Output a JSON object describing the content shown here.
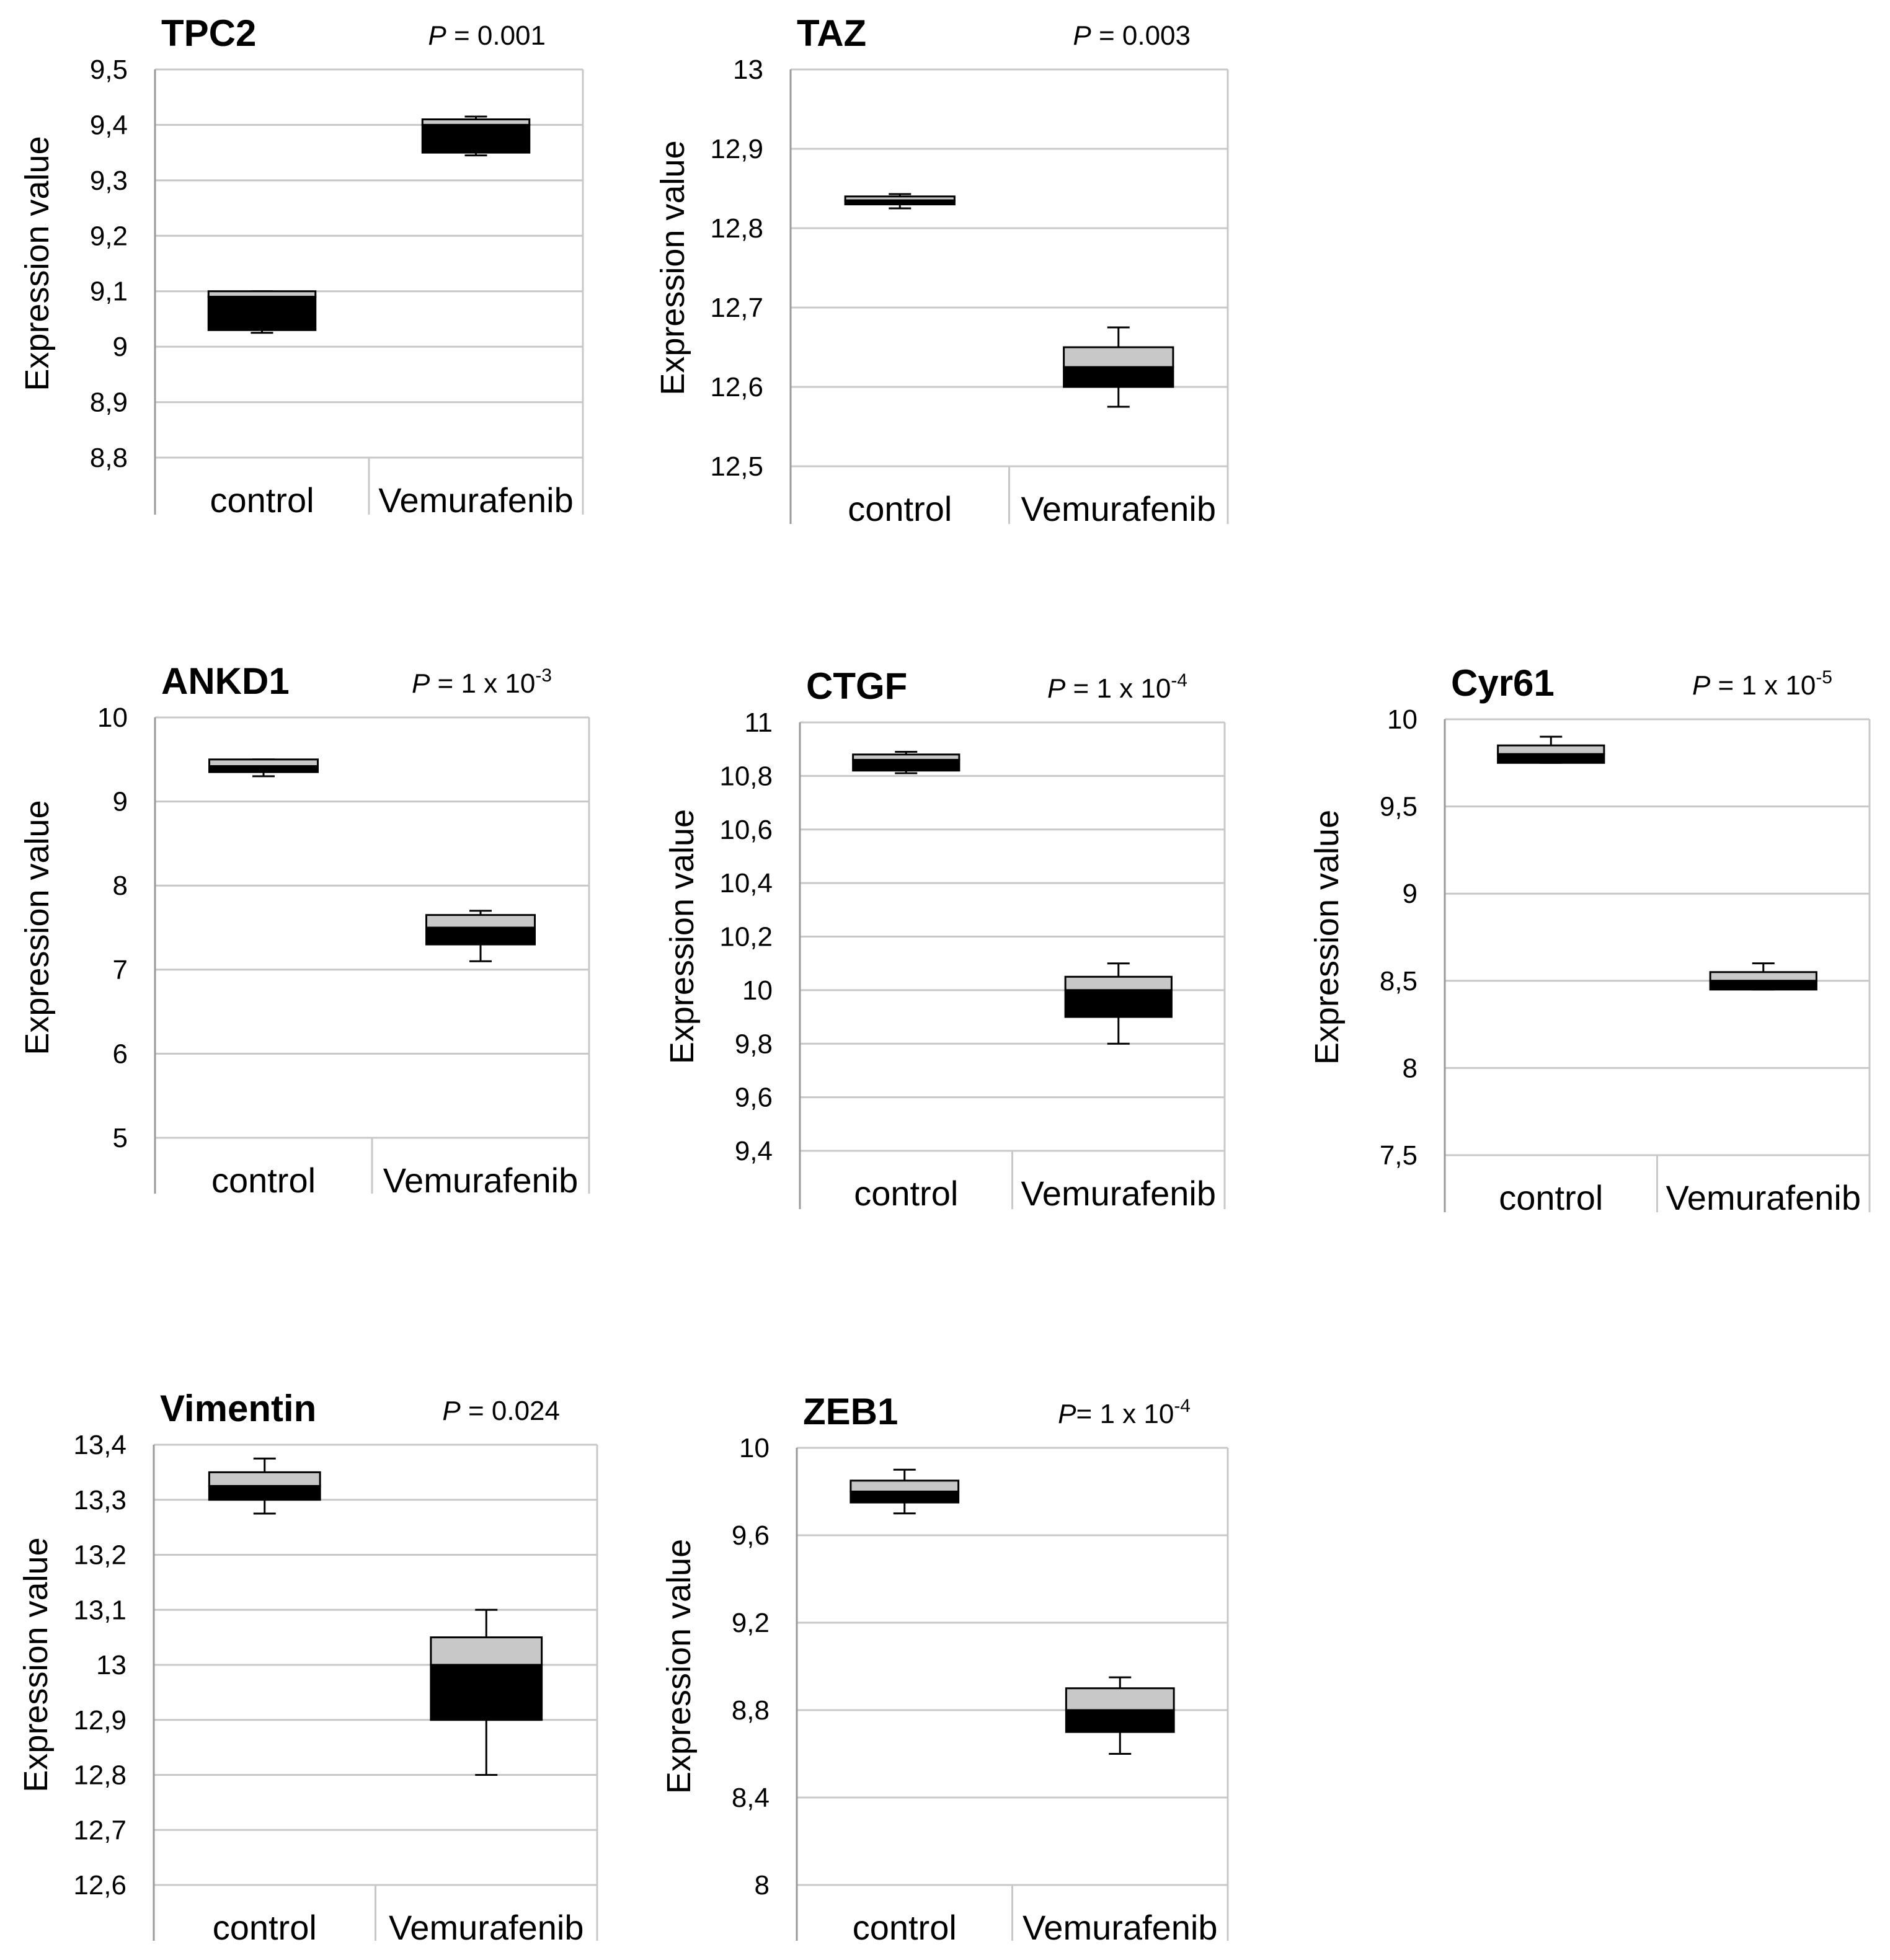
{
  "colors": {
    "grid": "#c8c8c8",
    "axis": "#9a9a9a",
    "box_upper": "#c8c8c8",
    "box_lower": "#000000",
    "whisker": "#000000",
    "text": "#000000"
  },
  "chart_data": [
    {
      "type": "box",
      "title": "TPC2",
      "p_prefix": "P",
      "p_value": " = 0.001",
      "p_exp": "",
      "ylabel": "Expression value",
      "ylim": [
        8.8,
        9.5
      ],
      "ticks": [
        "9,5",
        "9,4",
        "9,3",
        "9,2",
        "9,1",
        "9",
        "8,9",
        "8,8"
      ],
      "categories": [
        "control",
        "Vemurafenib"
      ],
      "boxes": [
        {
          "min": 9.025,
          "q1": 9.03,
          "median": 9.09,
          "q3": 9.1,
          "max": 9.1
        },
        {
          "min": 9.345,
          "q1": 9.35,
          "median": 9.4,
          "q3": 9.41,
          "max": 9.415
        }
      ]
    },
    {
      "type": "box",
      "title": "TAZ",
      "p_prefix": "P",
      "p_value": " = 0.003",
      "p_exp": "",
      "ylabel": "Expression value",
      "ylim": [
        12.5,
        13.0
      ],
      "ticks": [
        "13",
        "12,9",
        "12,8",
        "12,7",
        "12,6",
        "12,5"
      ],
      "categories": [
        "control",
        "Vemurafenib"
      ],
      "boxes": [
        {
          "min": 12.825,
          "q1": 12.83,
          "median": 12.835,
          "q3": 12.84,
          "max": 12.843
        },
        {
          "min": 12.575,
          "q1": 12.6,
          "median": 12.625,
          "q3": 12.65,
          "max": 12.675
        }
      ]
    },
    {
      "type": "box",
      "title": "ANKD1",
      "p_prefix": "P",
      "p_value": " = 1 x 10",
      "p_exp": "-3",
      "ylabel": "Expression value",
      "ylim": [
        5,
        10
      ],
      "ticks": [
        "10",
        "9",
        "8",
        "7",
        "6",
        "5"
      ],
      "categories": [
        "control",
        "Vemurafenib"
      ],
      "boxes": [
        {
          "min": 9.3,
          "q1": 9.35,
          "median": 9.42,
          "q3": 9.5,
          "max": 9.5
        },
        {
          "min": 7.1,
          "q1": 7.3,
          "median": 7.5,
          "q3": 7.65,
          "max": 7.7
        }
      ]
    },
    {
      "type": "box",
      "title": "CTGF",
      "p_prefix": "P",
      "p_value": " = 1 x 10",
      "p_exp": "-4",
      "ylabel": "Expression value",
      "ylim": [
        9.4,
        11.0
      ],
      "ticks": [
        "11",
        "10,8",
        "10,6",
        "10,4",
        "10,2",
        "10",
        "9,8",
        "9,6",
        "9,4"
      ],
      "categories": [
        "control",
        "Vemurafenib"
      ],
      "boxes": [
        {
          "min": 10.81,
          "q1": 10.82,
          "median": 10.86,
          "q3": 10.88,
          "max": 10.89
        },
        {
          "min": 9.8,
          "q1": 9.9,
          "median": 10.0,
          "q3": 10.05,
          "max": 10.1
        }
      ]
    },
    {
      "type": "box",
      "title": "Cyr61",
      "p_prefix": "P",
      "p_value": " = 1 x 10",
      "p_exp": "-5",
      "ylabel": "Expression value",
      "ylim": [
        7.5,
        10.0
      ],
      "ticks": [
        "10",
        "9,5",
        "9",
        "8,5",
        "8",
        "7,5"
      ],
      "categories": [
        "control",
        "Vemurafenib"
      ],
      "boxes": [
        {
          "min": 9.75,
          "q1": 9.75,
          "median": 9.8,
          "q3": 9.85,
          "max": 9.9
        },
        {
          "min": 8.45,
          "q1": 8.45,
          "median": 8.5,
          "q3": 8.55,
          "max": 8.6
        }
      ]
    },
    {
      "type": "box",
      "title": "Vimentin",
      "p_prefix": "P",
      "p_value": " = 0.024",
      "p_exp": "",
      "ylabel": "Expression value",
      "ylim": [
        12.6,
        13.4
      ],
      "ticks": [
        "13,4",
        "13,3",
        "13,2",
        "13,1",
        "13",
        "12,9",
        "12,8",
        "12,7",
        "12,6"
      ],
      "categories": [
        "control",
        "Vemurafenib"
      ],
      "boxes": [
        {
          "min": 13.275,
          "q1": 13.3,
          "median": 13.325,
          "q3": 13.35,
          "max": 13.375
        },
        {
          "min": 12.8,
          "q1": 12.9,
          "median": 13.0,
          "q3": 13.05,
          "max": 13.1
        }
      ]
    },
    {
      "type": "box",
      "title": "ZEB1",
      "p_prefix": "P",
      "p_value": "= 1 x 10",
      "p_exp": "-4",
      "ylabel": "Expression value",
      "ylim": [
        8.0,
        10.0
      ],
      "ticks": [
        "10",
        "9,6",
        "9,2",
        "8,8",
        "8,4",
        "8"
      ],
      "categories": [
        "control",
        "Vemurafenib"
      ],
      "boxes": [
        {
          "min": 9.7,
          "q1": 9.75,
          "median": 9.8,
          "q3": 9.85,
          "max": 9.9
        },
        {
          "min": 8.6,
          "q1": 8.7,
          "median": 8.8,
          "q3": 8.9,
          "max": 8.95
        }
      ]
    }
  ]
}
